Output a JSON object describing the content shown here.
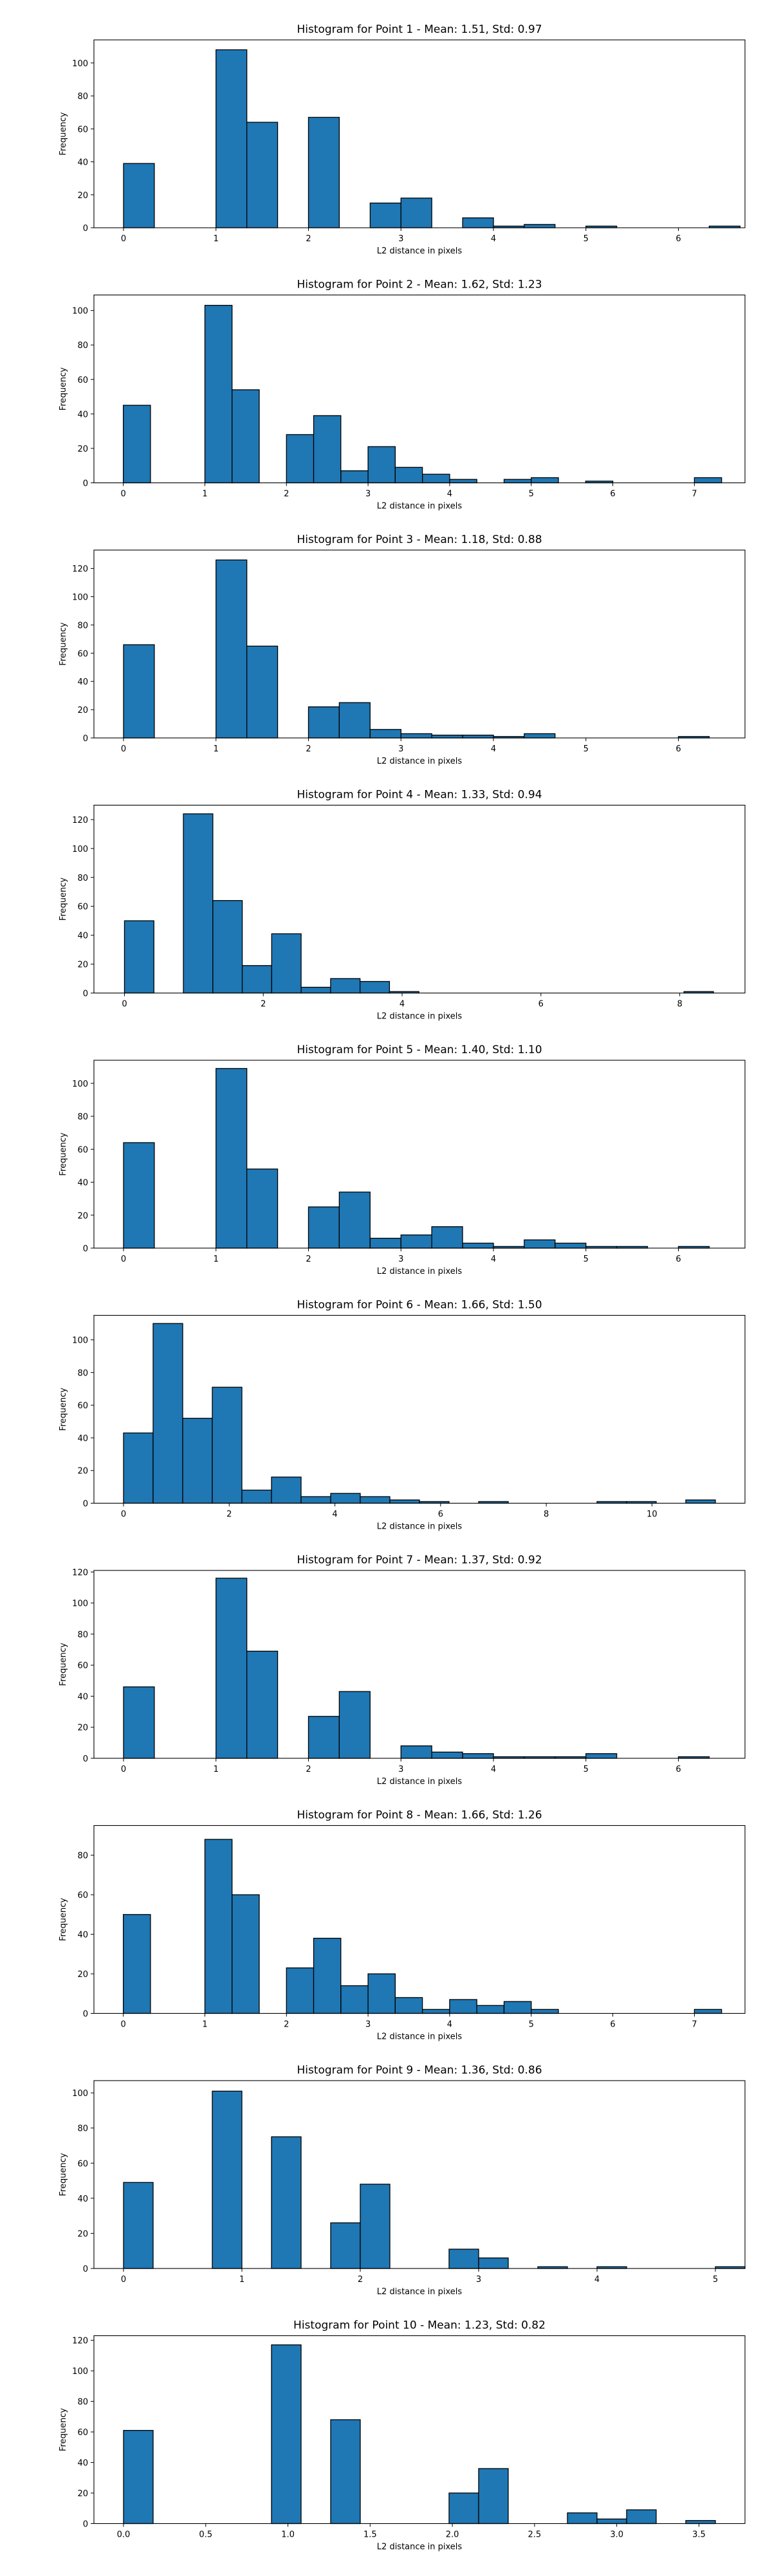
{
  "chart_data": [
    {
      "type": "bar",
      "title": "Histogram for Point 1 - Mean: 1.51, Std: 0.97",
      "xlabel": "L2 distance in pixels",
      "ylabel": "Frequency",
      "xlim": [
        -0.32,
        6.72
      ],
      "ylim": [
        0,
        114
      ],
      "xticks": [
        0,
        1,
        2,
        3,
        4,
        5,
        6
      ],
      "yticks": [
        0,
        20,
        40,
        60,
        80,
        100
      ],
      "bin_width": 0.3333,
      "bins": [
        {
          "x": 0,
          "y": 39
        },
        {
          "x": 1,
          "y": 108
        },
        {
          "x": 1.333,
          "y": 64
        },
        {
          "x": 2,
          "y": 67
        },
        {
          "x": 2.667,
          "y": 15
        },
        {
          "x": 3,
          "y": 18
        },
        {
          "x": 3.667,
          "y": 6
        },
        {
          "x": 4,
          "y": 1
        },
        {
          "x": 4.333,
          "y": 2
        },
        {
          "x": 5,
          "y": 1
        },
        {
          "x": 6.333,
          "y": 1
        }
      ]
    },
    {
      "type": "bar",
      "title": "Histogram for Point 2 - Mean: 1.62, Std: 1.23",
      "xlabel": "L2 distance in pixels",
      "ylabel": "Frequency",
      "xlim": [
        -0.36,
        7.62
      ],
      "ylim": [
        0,
        109
      ],
      "xticks": [
        0,
        1,
        2,
        3,
        4,
        5,
        6,
        7
      ],
      "yticks": [
        0,
        20,
        40,
        60,
        80,
        100
      ],
      "bin_width": 0.3333,
      "bins": [
        {
          "x": 0,
          "y": 45
        },
        {
          "x": 1,
          "y": 103
        },
        {
          "x": 1.333,
          "y": 54
        },
        {
          "x": 2,
          "y": 28
        },
        {
          "x": 2.333,
          "y": 39
        },
        {
          "x": 2.667,
          "y": 7
        },
        {
          "x": 3,
          "y": 21
        },
        {
          "x": 3.333,
          "y": 9
        },
        {
          "x": 3.667,
          "y": 5
        },
        {
          "x": 4,
          "y": 2
        },
        {
          "x": 4.667,
          "y": 2
        },
        {
          "x": 5,
          "y": 3
        },
        {
          "x": 5.667,
          "y": 1
        },
        {
          "x": 7,
          "y": 3
        }
      ]
    },
    {
      "type": "bar",
      "title": "Histogram for Point 3 - Mean: 1.18, Std: 0.88",
      "xlabel": "L2 distance in pixels",
      "ylabel": "Frequency",
      "xlim": [
        -0.32,
        6.72
      ],
      "ylim": [
        0,
        133
      ],
      "xticks": [
        0,
        1,
        2,
        3,
        4,
        5,
        6
      ],
      "yticks": [
        0,
        20,
        40,
        60,
        80,
        100,
        120
      ],
      "bin_width": 0.3333,
      "bins": [
        {
          "x": 0,
          "y": 66
        },
        {
          "x": 1,
          "y": 126
        },
        {
          "x": 1.333,
          "y": 65
        },
        {
          "x": 2,
          "y": 22
        },
        {
          "x": 2.333,
          "y": 25
        },
        {
          "x": 2.667,
          "y": 6
        },
        {
          "x": 3,
          "y": 3
        },
        {
          "x": 3.333,
          "y": 2
        },
        {
          "x": 3.667,
          "y": 2
        },
        {
          "x": 4,
          "y": 1
        },
        {
          "x": 4.333,
          "y": 3
        },
        {
          "x": 6,
          "y": 1
        }
      ]
    },
    {
      "type": "bar",
      "title": "Histogram for Point 4 - Mean: 1.33, Std: 0.94",
      "xlabel": "L2 distance in pixels",
      "ylabel": "Frequency",
      "xlim": [
        -0.44,
        8.94
      ],
      "ylim": [
        0,
        130
      ],
      "xticks": [
        0,
        2,
        4,
        6,
        8
      ],
      "yticks": [
        0,
        20,
        40,
        60,
        80,
        100,
        120
      ],
      "bin_width": 0.4243,
      "bins": [
        {
          "x": 0,
          "y": 50
        },
        {
          "x": 0.849,
          "y": 124
        },
        {
          "x": 1.273,
          "y": 64
        },
        {
          "x": 1.697,
          "y": 19
        },
        {
          "x": 2.121,
          "y": 41
        },
        {
          "x": 2.546,
          "y": 4
        },
        {
          "x": 2.97,
          "y": 10
        },
        {
          "x": 3.394,
          "y": 8
        },
        {
          "x": 3.818,
          "y": 1
        },
        {
          "x": 8.061,
          "y": 1
        }
      ]
    },
    {
      "type": "bar",
      "title": "Histogram for Point 5 - Mean: 1.40, Std: 1.10",
      "xlabel": "L2 distance in pixels",
      "ylabel": "Frequency",
      "xlim": [
        -0.32,
        6.72
      ],
      "ylim": [
        0,
        114
      ],
      "xticks": [
        0,
        1,
        2,
        3,
        4,
        5,
        6
      ],
      "yticks": [
        0,
        20,
        40,
        60,
        80,
        100
      ],
      "bin_width": 0.3333,
      "bins": [
        {
          "x": 0,
          "y": 64
        },
        {
          "x": 1,
          "y": 109
        },
        {
          "x": 1.333,
          "y": 48
        },
        {
          "x": 2,
          "y": 25
        },
        {
          "x": 2.333,
          "y": 34
        },
        {
          "x": 2.667,
          "y": 6
        },
        {
          "x": 3,
          "y": 8
        },
        {
          "x": 3.333,
          "y": 13
        },
        {
          "x": 3.667,
          "y": 3
        },
        {
          "x": 4,
          "y": 1
        },
        {
          "x": 4.333,
          "y": 5
        },
        {
          "x": 4.667,
          "y": 3
        },
        {
          "x": 5,
          "y": 1
        },
        {
          "x": 5.333,
          "y": 1
        },
        {
          "x": 6,
          "y": 1
        }
      ]
    },
    {
      "type": "bar",
      "title": "Histogram for Point 6 - Mean: 1.66, Std: 1.50",
      "xlabel": "L2 distance in pixels",
      "ylabel": "Frequency",
      "xlim": [
        -0.56,
        11.76
      ],
      "ylim": [
        0,
        115
      ],
      "xticks": [
        0,
        2,
        4,
        6,
        8,
        10
      ],
      "yticks": [
        0,
        20,
        40,
        60,
        80,
        100
      ],
      "bin_width": 0.56,
      "bins": [
        {
          "x": 0,
          "y": 43
        },
        {
          "x": 0.56,
          "y": 110
        },
        {
          "x": 1.12,
          "y": 52
        },
        {
          "x": 1.68,
          "y": 71
        },
        {
          "x": 2.24,
          "y": 8
        },
        {
          "x": 2.8,
          "y": 16
        },
        {
          "x": 3.36,
          "y": 4
        },
        {
          "x": 3.92,
          "y": 6
        },
        {
          "x": 4.48,
          "y": 4
        },
        {
          "x": 5.04,
          "y": 2
        },
        {
          "x": 5.6,
          "y": 1
        },
        {
          "x": 6.72,
          "y": 1
        },
        {
          "x": 8.96,
          "y": 1
        },
        {
          "x": 9.52,
          "y": 1
        },
        {
          "x": 10.64,
          "y": 2
        }
      ]
    },
    {
      "type": "bar",
      "title": "Histogram for Point 7 - Mean: 1.37, Std: 0.92",
      "xlabel": "L2 distance in pixels",
      "ylabel": "Frequency",
      "xlim": [
        -0.32,
        6.72
      ],
      "ylim": [
        0,
        121
      ],
      "xticks": [
        0,
        1,
        2,
        3,
        4,
        5,
        6
      ],
      "yticks": [
        0,
        20,
        40,
        60,
        80,
        100,
        120
      ],
      "bin_width": 0.3333,
      "bins": [
        {
          "x": 0,
          "y": 46
        },
        {
          "x": 1,
          "y": 116
        },
        {
          "x": 1.333,
          "y": 69
        },
        {
          "x": 2,
          "y": 27
        },
        {
          "x": 2.333,
          "y": 43
        },
        {
          "x": 3,
          "y": 8
        },
        {
          "x": 3.333,
          "y": 4
        },
        {
          "x": 3.667,
          "y": 3
        },
        {
          "x": 4,
          "y": 1
        },
        {
          "x": 4.333,
          "y": 1
        },
        {
          "x": 4.667,
          "y": 1
        },
        {
          "x": 5,
          "y": 3
        },
        {
          "x": 6,
          "y": 1
        }
      ]
    },
    {
      "type": "bar",
      "title": "Histogram for Point 8 - Mean: 1.66, Std: 1.26",
      "xlabel": "L2 distance in pixels",
      "ylabel": "Frequency",
      "xlim": [
        -0.36,
        7.62
      ],
      "ylim": [
        0,
        95
      ],
      "xticks": [
        0,
        1,
        2,
        3,
        4,
        5,
        6,
        7
      ],
      "yticks": [
        0,
        20,
        40,
        60,
        80
      ],
      "bin_width": 0.3333,
      "bins": [
        {
          "x": 0,
          "y": 50
        },
        {
          "x": 1,
          "y": 88
        },
        {
          "x": 1.333,
          "y": 60
        },
        {
          "x": 2,
          "y": 23
        },
        {
          "x": 2.333,
          "y": 38
        },
        {
          "x": 2.667,
          "y": 14
        },
        {
          "x": 3,
          "y": 20
        },
        {
          "x": 3.333,
          "y": 8
        },
        {
          "x": 3.667,
          "y": 2
        },
        {
          "x": 4,
          "y": 7
        },
        {
          "x": 4.333,
          "y": 4
        },
        {
          "x": 4.667,
          "y": 6
        },
        {
          "x": 5,
          "y": 2
        },
        {
          "x": 7,
          "y": 2
        }
      ]
    },
    {
      "type": "bar",
      "title": "Histogram for Point 9 - Mean: 1.36, Std: 0.86",
      "xlabel": "L2 distance in pixels",
      "ylabel": "Frequency",
      "xlim": [
        -0.25,
        5.25
      ],
      "ylim": [
        0,
        107
      ],
      "xticks": [
        0,
        1,
        2,
        3,
        4,
        5
      ],
      "yticks": [
        0,
        20,
        40,
        60,
        80,
        100
      ],
      "bin_width": 0.25,
      "bins": [
        {
          "x": 0,
          "y": 49
        },
        {
          "x": 0.75,
          "y": 101
        },
        {
          "x": 1.25,
          "y": 75
        },
        {
          "x": 1.75,
          "y": 26
        },
        {
          "x": 2,
          "y": 48
        },
        {
          "x": 2.75,
          "y": 11
        },
        {
          "x": 3,
          "y": 6
        },
        {
          "x": 3.5,
          "y": 1
        },
        {
          "x": 4,
          "y": 1
        },
        {
          "x": 5,
          "y": 1
        }
      ]
    },
    {
      "type": "bar",
      "title": "Histogram for Point 10 - Mean: 1.23, Std: 0.82",
      "xlabel": "L2 distance in pixels",
      "ylabel": "Frequency",
      "xlim": [
        -0.18,
        3.78
      ],
      "ylim": [
        0,
        123
      ],
      "xticks": [
        "0.0",
        "0.5",
        "1.0",
        "1.5",
        "2.0",
        "2.5",
        "3.0",
        "3.5"
      ],
      "yticks": [
        0,
        20,
        40,
        60,
        80,
        100,
        120
      ],
      "bin_width": 0.18,
      "bins": [
        {
          "x": 0,
          "y": 61
        },
        {
          "x": 0.9,
          "y": 117
        },
        {
          "x": 1.26,
          "y": 68
        },
        {
          "x": 1.98,
          "y": 20
        },
        {
          "x": 2.16,
          "y": 36
        },
        {
          "x": 2.7,
          "y": 7
        },
        {
          "x": 2.88,
          "y": 3
        },
        {
          "x": 3.06,
          "y": 9
        },
        {
          "x": 3.42,
          "y": 2
        }
      ]
    }
  ],
  "colors": {
    "bar_fill": "#1f77b4",
    "bar_edge": "#000000",
    "axes": "#000000"
  }
}
